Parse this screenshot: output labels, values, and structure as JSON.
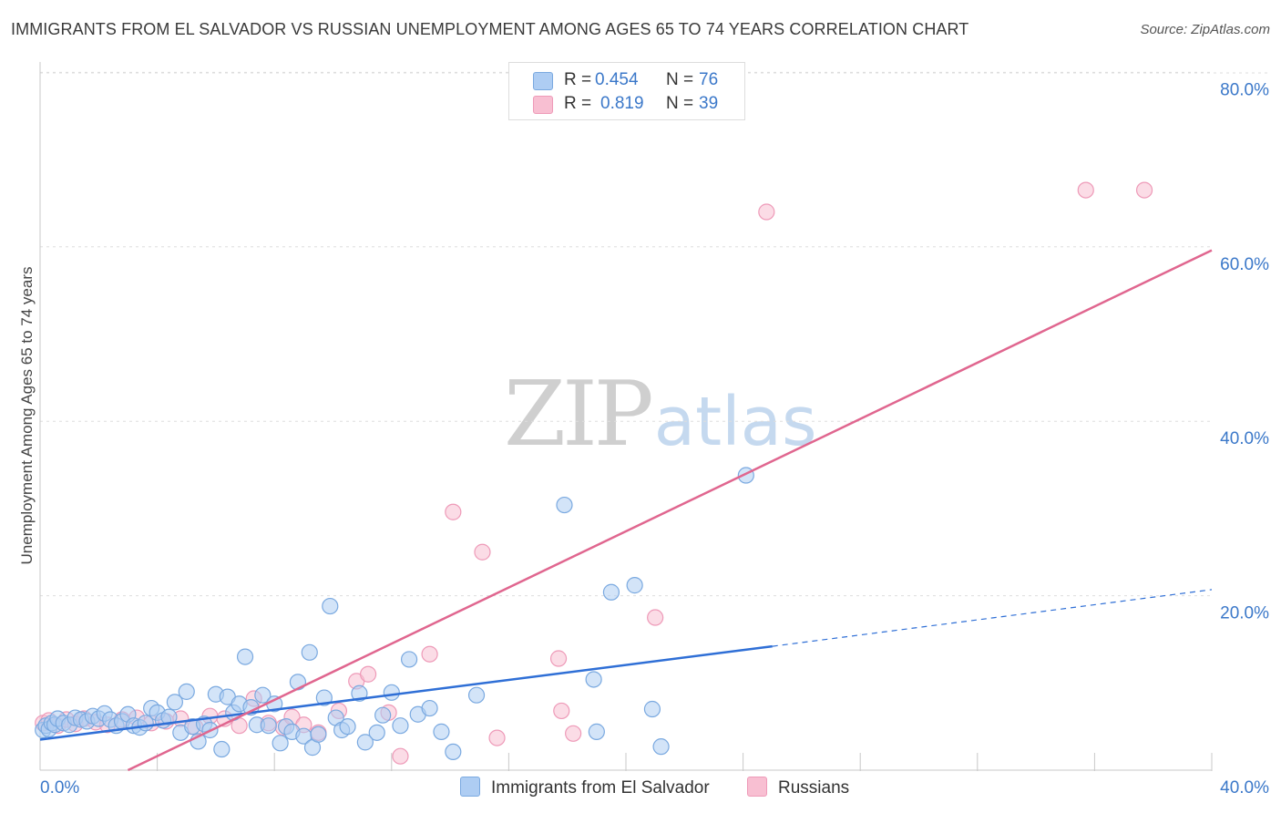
{
  "header": {
    "title": "IMMIGRANTS FROM EL SALVADOR VS RUSSIAN UNEMPLOYMENT AMONG AGES 65 TO 74 YEARS CORRELATION CHART",
    "source": "Source: ZipAtlas.com"
  },
  "watermark": {
    "zip": "ZIP",
    "atlas": "atlas"
  },
  "legend": {
    "r_label": "R =",
    "n_label": "N =",
    "rows": [
      {
        "r": "0.454",
        "n": "76"
      },
      {
        "r": "0.819",
        "n": "39"
      }
    ]
  },
  "colors": {
    "salvador_fill": "#aecdf3",
    "salvador_stroke": "#7aa9e0",
    "salvador_line": "#2f6fd6",
    "russian_fill": "#f8bfd2",
    "russian_stroke": "#ee9ab8",
    "russian_line": "#e0668f",
    "grid": "#dddddd",
    "tick_label": "#3b78c9"
  },
  "chart_data": {
    "type": "scatter",
    "title": "IMMIGRANTS FROM EL SALVADOR VS RUSSIAN UNEMPLOYMENT AMONG AGES 65 TO 74 YEARS CORRELATION CHART",
    "xlabel": "",
    "ylabel": "Unemployment Among Ages 65 to 74 years",
    "xlim": [
      0,
      40
    ],
    "ylim": [
      0,
      80
    ],
    "x_tick_labels": [
      "0.0%",
      "40.0%"
    ],
    "y_ticks": [
      20,
      40,
      60,
      80
    ],
    "y_tick_labels": [
      "20.0%",
      "40.0%",
      "60.0%",
      "80.0%"
    ],
    "series": [
      {
        "name": "Immigrants from El Salvador",
        "r": 0.454,
        "n": 76,
        "trend": {
          "x0": 0,
          "y0": 3.5,
          "x1": 25,
          "y1": 14.2,
          "dashed_to_x": 40,
          "dashed_to_y": 20.7
        },
        "points": [
          [
            0.1,
            4.6
          ],
          [
            0.2,
            5.1
          ],
          [
            0.3,
            4.7
          ],
          [
            0.4,
            5.4
          ],
          [
            0.5,
            5.2
          ],
          [
            0.6,
            5.9
          ],
          [
            0.8,
            5.4
          ],
          [
            1.0,
            5.2
          ],
          [
            1.2,
            6.0
          ],
          [
            1.4,
            5.8
          ],
          [
            1.6,
            5.6
          ],
          [
            1.8,
            6.2
          ],
          [
            2.0,
            5.9
          ],
          [
            2.2,
            6.5
          ],
          [
            2.4,
            5.8
          ],
          [
            2.6,
            5.1
          ],
          [
            2.8,
            5.6
          ],
          [
            3.0,
            6.4
          ],
          [
            3.2,
            5.1
          ],
          [
            3.4,
            4.9
          ],
          [
            3.6,
            5.4
          ],
          [
            3.8,
            7.1
          ],
          [
            4.0,
            6.6
          ],
          [
            4.2,
            5.7
          ],
          [
            4.4,
            6.1
          ],
          [
            4.6,
            7.8
          ],
          [
            4.8,
            4.3
          ],
          [
            5.0,
            9.0
          ],
          [
            5.2,
            5.0
          ],
          [
            5.4,
            3.3
          ],
          [
            5.6,
            5.3
          ],
          [
            5.8,
            4.6
          ],
          [
            6.0,
            8.7
          ],
          [
            6.2,
            2.4
          ],
          [
            6.4,
            8.4
          ],
          [
            6.6,
            6.6
          ],
          [
            6.8,
            7.6
          ],
          [
            7.0,
            13.0
          ],
          [
            7.2,
            7.2
          ],
          [
            7.4,
            5.2
          ],
          [
            7.6,
            8.6
          ],
          [
            7.8,
            5.1
          ],
          [
            8.0,
            7.6
          ],
          [
            8.2,
            3.1
          ],
          [
            8.4,
            5.0
          ],
          [
            8.6,
            4.4
          ],
          [
            8.8,
            10.1
          ],
          [
            9.0,
            3.9
          ],
          [
            9.2,
            13.5
          ],
          [
            9.3,
            2.6
          ],
          [
            9.5,
            4.1
          ],
          [
            9.7,
            8.3
          ],
          [
            9.9,
            18.8
          ],
          [
            10.1,
            6.0
          ],
          [
            10.3,
            4.6
          ],
          [
            10.5,
            5.0
          ],
          [
            10.9,
            8.8
          ],
          [
            11.1,
            3.2
          ],
          [
            11.5,
            4.3
          ],
          [
            11.7,
            6.3
          ],
          [
            12.0,
            8.9
          ],
          [
            12.3,
            5.1
          ],
          [
            12.6,
            12.7
          ],
          [
            12.9,
            6.4
          ],
          [
            13.3,
            7.1
          ],
          [
            13.7,
            4.4
          ],
          [
            14.1,
            2.1
          ],
          [
            14.9,
            8.6
          ],
          [
            17.9,
            30.4
          ],
          [
            18.9,
            10.4
          ],
          [
            19.0,
            4.4
          ],
          [
            19.5,
            20.4
          ],
          [
            20.3,
            21.2
          ],
          [
            20.9,
            7.0
          ],
          [
            21.2,
            2.7
          ],
          [
            24.1,
            33.8
          ]
        ]
      },
      {
        "name": "Russians",
        "r": 0.819,
        "n": 39,
        "trend": {
          "x0": 3.0,
          "y0": 0,
          "x1": 40,
          "y1": 59.6
        },
        "points": [
          [
            0.1,
            5.4
          ],
          [
            0.3,
            5.7
          ],
          [
            0.6,
            5.1
          ],
          [
            0.9,
            5.8
          ],
          [
            1.2,
            5.3
          ],
          [
            1.5,
            5.9
          ],
          [
            1.9,
            5.5
          ],
          [
            2.3,
            5.2
          ],
          [
            2.8,
            5.8
          ],
          [
            3.3,
            6.0
          ],
          [
            3.8,
            5.4
          ],
          [
            4.3,
            5.6
          ],
          [
            4.8,
            5.9
          ],
          [
            5.3,
            4.9
          ],
          [
            5.8,
            6.2
          ],
          [
            6.3,
            5.9
          ],
          [
            6.8,
            5.1
          ],
          [
            7.3,
            8.2
          ],
          [
            7.8,
            5.4
          ],
          [
            8.3,
            4.9
          ],
          [
            8.6,
            6.1
          ],
          [
            9.0,
            5.2
          ],
          [
            9.5,
            4.3
          ],
          [
            10.2,
            6.8
          ],
          [
            10.8,
            10.2
          ],
          [
            11.2,
            11.0
          ],
          [
            11.9,
            6.6
          ],
          [
            12.3,
            1.6
          ],
          [
            13.3,
            13.3
          ],
          [
            14.1,
            29.6
          ],
          [
            15.1,
            25.0
          ],
          [
            15.6,
            3.7
          ],
          [
            17.7,
            12.8
          ],
          [
            17.8,
            6.8
          ],
          [
            18.2,
            4.2
          ],
          [
            21.0,
            17.5
          ],
          [
            24.8,
            64.0
          ],
          [
            35.7,
            66.5
          ],
          [
            37.7,
            66.5
          ]
        ]
      }
    ]
  }
}
